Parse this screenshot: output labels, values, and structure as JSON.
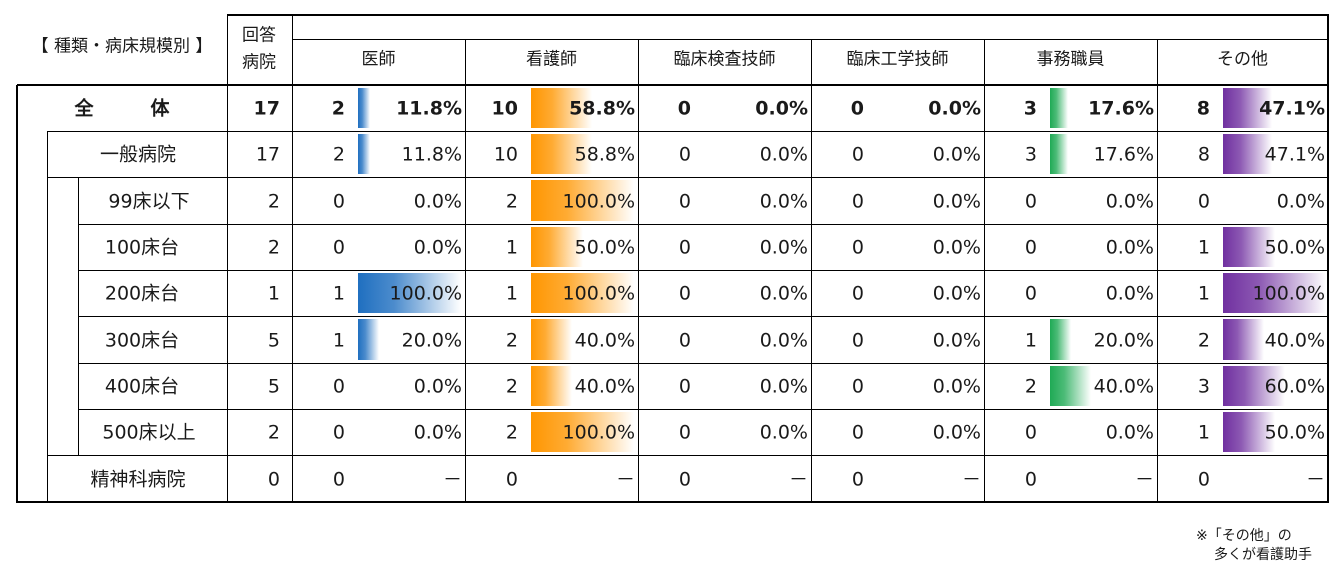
{
  "header": {
    "group_label": "【 種類・病床規模別 】",
    "respondents_line1": "回答",
    "respondents_line2": "病院",
    "columns": [
      "医師",
      "看護師",
      "臨床検査技師",
      "臨床工学技師",
      "事務職員",
      "その他"
    ]
  },
  "colors": {
    "医師": "#1f6fc0",
    "看護師": "#ff9600",
    "臨床検査技師": "#1f6fc0",
    "臨床工学技師": "#1f6fc0",
    "事務職員": "#1faa55",
    "その他": "#7030a0"
  },
  "chart_data": {
    "type": "table",
    "columns": [
      "医師",
      "看護師",
      "臨床検査技師",
      "臨床工学技師",
      "事務職員",
      "その他"
    ],
    "rows": [
      {
        "label": "全　　　体",
        "respondents": "17",
        "bold": true,
        "cells": [
          {
            "count": "2",
            "pct_text": "11.8%",
            "pct": 11.8
          },
          {
            "count": "10",
            "pct_text": "58.8%",
            "pct": 58.8
          },
          {
            "count": "0",
            "pct_text": "0.0%",
            "pct": 0
          },
          {
            "count": "0",
            "pct_text": "0.0%",
            "pct": 0
          },
          {
            "count": "3",
            "pct_text": "17.6%",
            "pct": 17.6
          },
          {
            "count": "8",
            "pct_text": "47.1%",
            "pct": 47.1
          }
        ]
      },
      {
        "label": "一般病院",
        "respondents": "17",
        "cells": [
          {
            "count": "2",
            "pct_text": "11.8%",
            "pct": 11.8
          },
          {
            "count": "10",
            "pct_text": "58.8%",
            "pct": 58.8
          },
          {
            "count": "0",
            "pct_text": "0.0%",
            "pct": 0
          },
          {
            "count": "0",
            "pct_text": "0.0%",
            "pct": 0
          },
          {
            "count": "3",
            "pct_text": "17.6%",
            "pct": 17.6
          },
          {
            "count": "8",
            "pct_text": "47.1%",
            "pct": 47.1
          }
        ]
      },
      {
        "label": "99床以下",
        "respondents": "2",
        "cells": [
          {
            "count": "0",
            "pct_text": "0.0%",
            "pct": 0
          },
          {
            "count": "2",
            "pct_text": "100.0%",
            "pct": 100
          },
          {
            "count": "0",
            "pct_text": "0.0%",
            "pct": 0
          },
          {
            "count": "0",
            "pct_text": "0.0%",
            "pct": 0
          },
          {
            "count": "0",
            "pct_text": "0.0%",
            "pct": 0
          },
          {
            "count": "0",
            "pct_text": "0.0%",
            "pct": 0
          }
        ]
      },
      {
        "label": "100床台",
        "respondents": "2",
        "cells": [
          {
            "count": "0",
            "pct_text": "0.0%",
            "pct": 0
          },
          {
            "count": "1",
            "pct_text": "50.0%",
            "pct": 50
          },
          {
            "count": "0",
            "pct_text": "0.0%",
            "pct": 0
          },
          {
            "count": "0",
            "pct_text": "0.0%",
            "pct": 0
          },
          {
            "count": "0",
            "pct_text": "0.0%",
            "pct": 0
          },
          {
            "count": "1",
            "pct_text": "50.0%",
            "pct": 50
          }
        ]
      },
      {
        "label": "200床台",
        "respondents": "1",
        "cells": [
          {
            "count": "1",
            "pct_text": "100.0%",
            "pct": 100
          },
          {
            "count": "1",
            "pct_text": "100.0%",
            "pct": 100
          },
          {
            "count": "0",
            "pct_text": "0.0%",
            "pct": 0
          },
          {
            "count": "0",
            "pct_text": "0.0%",
            "pct": 0
          },
          {
            "count": "0",
            "pct_text": "0.0%",
            "pct": 0
          },
          {
            "count": "1",
            "pct_text": "100.0%",
            "pct": 100
          }
        ]
      },
      {
        "label": "300床台",
        "respondents": "5",
        "cells": [
          {
            "count": "1",
            "pct_text": "20.0%",
            "pct": 20
          },
          {
            "count": "2",
            "pct_text": "40.0%",
            "pct": 40
          },
          {
            "count": "0",
            "pct_text": "0.0%",
            "pct": 0
          },
          {
            "count": "0",
            "pct_text": "0.0%",
            "pct": 0
          },
          {
            "count": "1",
            "pct_text": "20.0%",
            "pct": 20
          },
          {
            "count": "2",
            "pct_text": "40.0%",
            "pct": 40
          }
        ]
      },
      {
        "label": "400床台",
        "respondents": "5",
        "cells": [
          {
            "count": "0",
            "pct_text": "0.0%",
            "pct": 0
          },
          {
            "count": "2",
            "pct_text": "40.0%",
            "pct": 40
          },
          {
            "count": "0",
            "pct_text": "0.0%",
            "pct": 0
          },
          {
            "count": "0",
            "pct_text": "0.0%",
            "pct": 0
          },
          {
            "count": "2",
            "pct_text": "40.0%",
            "pct": 40
          },
          {
            "count": "3",
            "pct_text": "60.0%",
            "pct": 60
          }
        ]
      },
      {
        "label": "500床以上",
        "respondents": "2",
        "cells": [
          {
            "count": "0",
            "pct_text": "0.0%",
            "pct": 0
          },
          {
            "count": "2",
            "pct_text": "100.0%",
            "pct": 100
          },
          {
            "count": "0",
            "pct_text": "0.0%",
            "pct": 0
          },
          {
            "count": "0",
            "pct_text": "0.0%",
            "pct": 0
          },
          {
            "count": "0",
            "pct_text": "0.0%",
            "pct": 0
          },
          {
            "count": "1",
            "pct_text": "50.0%",
            "pct": 50
          }
        ]
      },
      {
        "label": "精神科病院",
        "respondents": "0",
        "cells": [
          {
            "count": "0",
            "pct_text": "－",
            "pct": null
          },
          {
            "count": "0",
            "pct_text": "－",
            "pct": null
          },
          {
            "count": "0",
            "pct_text": "－",
            "pct": null
          },
          {
            "count": "0",
            "pct_text": "－",
            "pct": null
          },
          {
            "count": "0",
            "pct_text": "－",
            "pct": null
          },
          {
            "count": "0",
            "pct_text": "－",
            "pct": null
          }
        ]
      }
    ]
  },
  "note": {
    "line1": "※「その他」の",
    "line2": "多くが看護助手"
  }
}
